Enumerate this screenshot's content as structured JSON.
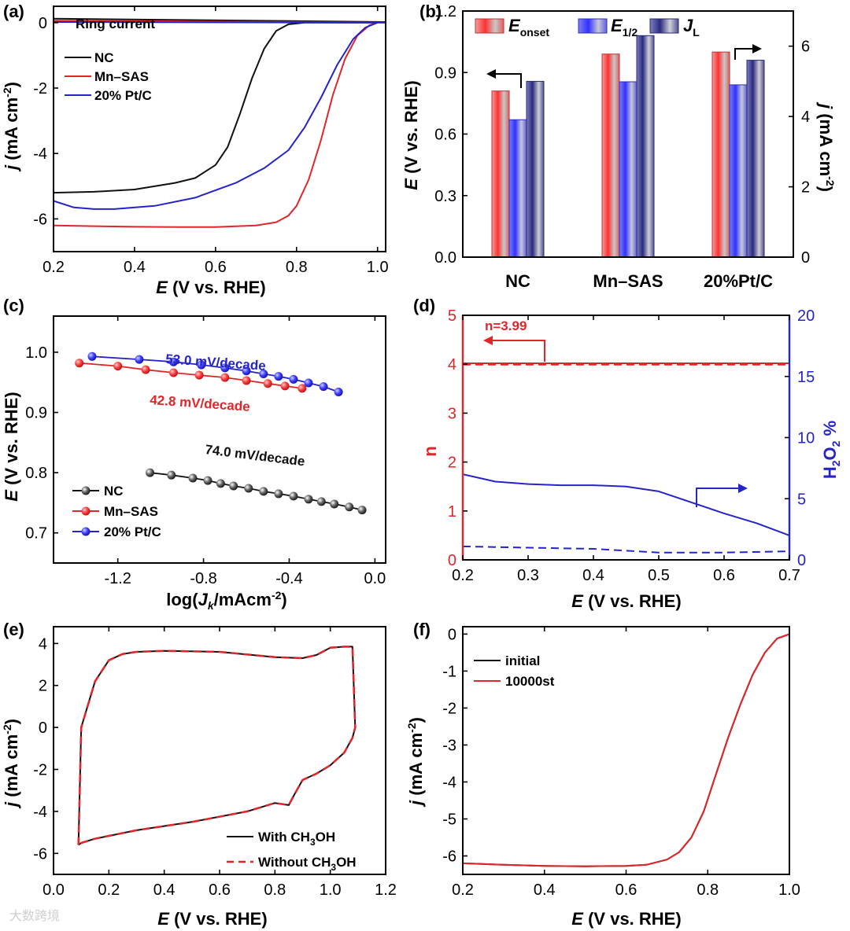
{
  "colors": {
    "black": "#111111",
    "red": "#e0262a",
    "blue": "#2424c8"
  },
  "watermark": "大数跨境",
  "chart_data": [
    {
      "id": "a",
      "panel_label": "(a)",
      "type": "line",
      "xlabel_italic": "E",
      "xlabel_rest": " (V vs. RHE)",
      "ylabel_italic": "j",
      "ylabel_rest": " (mA cm",
      "ylabel_sup": "-2",
      "ylabel_end": ")",
      "xlim": [
        0.2,
        1.02
      ],
      "ylim": [
        -7,
        0.5
      ],
      "xticks": [
        0.2,
        0.4,
        0.6,
        0.8,
        1.0
      ],
      "xticklabels": [
        "0.2",
        "0.4",
        "0.6",
        "0.8",
        "1.0"
      ],
      "yticks": [
        0,
        -2,
        -4,
        -6
      ],
      "yticklabels": [
        "0",
        "-2",
        "-4",
        "-6"
      ],
      "annotation": "Ring current",
      "legend": [
        "NC",
        "Mn–SAS",
        "20% Pt/C"
      ],
      "series": [
        {
          "name": "NC",
          "color": "black",
          "x": [
            0.2,
            0.3,
            0.4,
            0.5,
            0.55,
            0.6,
            0.63,
            0.66,
            0.69,
            0.72,
            0.75,
            0.78,
            0.82,
            0.9,
            1.0
          ],
          "y": [
            -5.2,
            -5.17,
            -5.1,
            -4.9,
            -4.75,
            -4.35,
            -3.8,
            -2.8,
            -1.7,
            -0.8,
            -0.25,
            -0.05,
            0,
            0,
            0
          ]
        },
        {
          "name": "Mn–SAS",
          "color": "red",
          "x": [
            0.2,
            0.3,
            0.4,
            0.5,
            0.6,
            0.7,
            0.75,
            0.78,
            0.8,
            0.83,
            0.86,
            0.89,
            0.92,
            0.95,
            0.98,
            1.0
          ],
          "y": [
            -6.2,
            -6.22,
            -6.24,
            -6.25,
            -6.25,
            -6.2,
            -6.1,
            -5.9,
            -5.6,
            -4.8,
            -3.6,
            -2.2,
            -1.1,
            -0.4,
            -0.08,
            0
          ]
        },
        {
          "name": "20% Pt/C",
          "color": "blue",
          "x": [
            0.2,
            0.25,
            0.3,
            0.35,
            0.45,
            0.55,
            0.65,
            0.72,
            0.78,
            0.82,
            0.86,
            0.9,
            0.94,
            0.97,
            1.0
          ],
          "y": [
            -5.45,
            -5.65,
            -5.7,
            -5.7,
            -5.6,
            -5.35,
            -4.9,
            -4.45,
            -3.9,
            -3.2,
            -2.3,
            -1.3,
            -0.5,
            -0.15,
            0
          ]
        },
        {
          "name": "",
          "color": "black",
          "x": [
            0.2,
            1.02
          ],
          "y": [
            0.12,
            0.02
          ]
        },
        {
          "name": "",
          "color": "red",
          "x": [
            0.2,
            1.02
          ],
          "y": [
            0.06,
            0.0
          ]
        },
        {
          "name": "",
          "color": "blue",
          "x": [
            0.2,
            1.02
          ],
          "y": [
            0.02,
            0.0
          ]
        }
      ]
    },
    {
      "id": "b",
      "panel_label": "(b)",
      "type": "bar",
      "ylabel_italic": "E",
      "ylabel_rest": " (V vs. RHE)",
      "y2label_italic": "j",
      "y2label_rest": " (mA cm",
      "y2label_sup": "-2",
      "y2label_end": ")",
      "categories": [
        "NC",
        "Mn–SAS",
        "20%Pt/C"
      ],
      "ylim": [
        0,
        1.2
      ],
      "yticks": [
        0.0,
        0.3,
        0.6,
        0.9,
        1.2
      ],
      "yticklabels": [
        "0.0",
        "0.3",
        "0.6",
        "0.9",
        "1.2"
      ],
      "y2lim": [
        0,
        7
      ],
      "y2ticks": [
        0,
        2,
        4,
        6
      ],
      "y2ticklabels": [
        "0",
        "2",
        "4",
        "6"
      ],
      "legend": [
        {
          "main": "E",
          "sub": "onset",
          "italic": true
        },
        {
          "main": "E",
          "sub": "1/2",
          "italic": true
        },
        {
          "main": "J",
          "sub": "L",
          "italic": true
        }
      ],
      "series": [
        {
          "name": "Eonset",
          "axis": "left",
          "values": [
            0.81,
            0.99,
            1.0
          ]
        },
        {
          "name": "E1/2",
          "axis": "left",
          "values": [
            0.67,
            0.855,
            0.84
          ]
        },
        {
          "name": "JL",
          "axis": "right",
          "values": [
            5.0,
            6.3,
            5.6
          ]
        }
      ]
    },
    {
      "id": "c",
      "panel_label": "(c)",
      "type": "line",
      "xlabel_pre": "log(",
      "xlabel_italic": "J",
      "xlabel_sub": "k",
      "xlabel_rest": "/mAcm",
      "xlabel_sup": "-2",
      "xlabel_end": ")",
      "ylabel_italic": "E",
      "ylabel_rest": " (V vs. RHE)",
      "xlim": [
        -1.5,
        0.05
      ],
      "ylim": [
        0.65,
        1.06
      ],
      "xticks": [
        -1.2,
        -0.8,
        -0.4,
        0.0
      ],
      "xticklabels": [
        "-1.2",
        "-0.8",
        "-0.4",
        "0.0"
      ],
      "yticks": [
        0.7,
        0.8,
        0.9,
        1.0
      ],
      "yticklabels": [
        "0.7",
        "0.8",
        "0.9",
        "1.0"
      ],
      "legend": [
        "NC",
        "Mn–SAS",
        "20% Pt/C"
      ],
      "annotations": [
        "53.0 mV/decade",
        "42.8 mV/decade",
        "74.0 mV/decade"
      ],
      "series": [
        {
          "name": "NC",
          "color": "black",
          "x": [
            -1.05,
            -0.95,
            -0.85,
            -0.78,
            -0.72,
            -0.66,
            -0.59,
            -0.52,
            -0.45,
            -0.38,
            -0.31,
            -0.25,
            -0.19,
            -0.12,
            -0.06
          ],
          "y": [
            0.8,
            0.796,
            0.791,
            0.787,
            0.782,
            0.778,
            0.774,
            0.769,
            0.765,
            0.761,
            0.756,
            0.752,
            0.748,
            0.743,
            0.738
          ]
        },
        {
          "name": "Mn–SAS",
          "color": "red",
          "x": [
            -1.38,
            -1.2,
            -1.07,
            -0.94,
            -0.82,
            -0.7,
            -0.6,
            -0.5,
            -0.42,
            -0.34
          ],
          "y": [
            0.982,
            0.977,
            0.971,
            0.966,
            0.962,
            0.958,
            0.953,
            0.948,
            0.944,
            0.94
          ]
        },
        {
          "name": "20% Pt/C",
          "color": "blue",
          "x": [
            -1.32,
            -1.1,
            -0.94,
            -0.81,
            -0.7,
            -0.6,
            -0.52,
            -0.45,
            -0.38,
            -0.31,
            -0.24,
            -0.17
          ],
          "y": [
            0.993,
            0.988,
            0.984,
            0.979,
            0.974,
            0.969,
            0.964,
            0.96,
            0.955,
            0.949,
            0.943,
            0.934
          ]
        }
      ]
    },
    {
      "id": "d",
      "panel_label": "(d)",
      "type": "line",
      "xlabel_italic": "E",
      "xlabel_rest": " (V vs. RHE)",
      "ylabel": "n",
      "y2label_pre": "H",
      "y2label_sub1": "2",
      "y2label_mid": "O",
      "y2label_sub2": "2",
      "y2label_end": " %",
      "xlim": [
        0.2,
        0.7
      ],
      "ylim": [
        0,
        5
      ],
      "y2lim": [
        0,
        20
      ],
      "xticks": [
        0.2,
        0.3,
        0.4,
        0.5,
        0.6,
        0.7
      ],
      "xticklabels": [
        "0.2",
        "0.3",
        "0.4",
        "0.5",
        "0.6",
        "0.7"
      ],
      "yticks": [
        0,
        1,
        2,
        3,
        4,
        5
      ],
      "yticklabels": [
        "0",
        "1",
        "2",
        "3",
        "4",
        "5"
      ],
      "y2ticks": [
        0,
        5,
        10,
        15,
        20
      ],
      "y2ticklabels": [
        "0",
        "5",
        "10",
        "15",
        "20"
      ],
      "annotation": "n=3.99",
      "series": [
        {
          "name": "n",
          "color": "red",
          "axis": "left",
          "x": [
            0.2,
            0.7
          ],
          "y": [
            4.02,
            4.02
          ]
        },
        {
          "name": "n",
          "color": "red",
          "axis": "left",
          "dashed": true,
          "x": [
            0.2,
            0.7
          ],
          "y": [
            3.99,
            3.99
          ]
        },
        {
          "name": "H2O2 %",
          "color": "blue",
          "axis": "right",
          "x": [
            0.2,
            0.25,
            0.3,
            0.35,
            0.4,
            0.45,
            0.5,
            0.55,
            0.6,
            0.65,
            0.7
          ],
          "y": [
            7.0,
            6.4,
            6.2,
            6.1,
            6.1,
            6.0,
            5.6,
            4.7,
            3.8,
            3.0,
            2.0
          ]
        },
        {
          "name": "H2O2 %",
          "color": "blue",
          "axis": "right",
          "dashed": true,
          "x": [
            0.2,
            0.3,
            0.4,
            0.5,
            0.6,
            0.7
          ],
          "y": [
            1.1,
            1.0,
            0.9,
            0.6,
            0.6,
            0.7
          ]
        }
      ]
    },
    {
      "id": "e",
      "panel_label": "(e)",
      "type": "line",
      "xlabel_italic": "E",
      "xlabel_rest": " (V vs. RHE)",
      "ylabel_italic": "j",
      "ylabel_rest": " (mA cm",
      "ylabel_sup": "-2",
      "ylabel_end": ")",
      "xlim": [
        0.0,
        1.2
      ],
      "ylim": [
        -7,
        4.8
      ],
      "xticks": [
        0.0,
        0.2,
        0.4,
        0.6,
        0.8,
        1.0,
        1.2
      ],
      "xticklabels": [
        "0.0",
        "0.2",
        "0.4",
        "0.6",
        "0.8",
        "1.0",
        "1.2"
      ],
      "yticks": [
        4,
        2,
        0,
        -2,
        -4,
        -6
      ],
      "yticklabels": [
        "4",
        "2",
        "0",
        "-2",
        "-4",
        "-6"
      ],
      "legend": [
        {
          "pre": "With CH",
          "sub": "3",
          "post": "OH"
        },
        {
          "pre": "Without CH",
          "sub": "3",
          "post": "OH"
        }
      ],
      "series": [
        {
          "name": "With CH3OH",
          "color": "black",
          "x": [
            0.09,
            0.1,
            0.15,
            0.2,
            0.25,
            0.3,
            0.4,
            0.6,
            0.8,
            0.9,
            0.95,
            1.0,
            1.05,
            1.08,
            1.09,
            1.08,
            1.05,
            1.0,
            0.95,
            0.9,
            0.87,
            0.85,
            0.8,
            0.7,
            0.5,
            0.3,
            0.15,
            0.1,
            0.09
          ],
          "y": [
            -5.6,
            0.0,
            2.2,
            3.2,
            3.5,
            3.6,
            3.65,
            3.6,
            3.35,
            3.3,
            3.45,
            3.8,
            3.85,
            3.85,
            0.0,
            -0.5,
            -1.2,
            -1.8,
            -2.2,
            -2.5,
            -3.2,
            -3.7,
            -3.6,
            -4.0,
            -4.5,
            -4.9,
            -5.3,
            -5.5,
            -5.6
          ]
        },
        {
          "name": "Without CH3OH",
          "color": "red",
          "dashed": true,
          "x": [
            0.09,
            0.1,
            0.15,
            0.2,
            0.25,
            0.3,
            0.4,
            0.6,
            0.8,
            0.9,
            0.95,
            1.0,
            1.05,
            1.08,
            1.09,
            1.08,
            1.05,
            1.0,
            0.95,
            0.9,
            0.87,
            0.85,
            0.8,
            0.7,
            0.5,
            0.3,
            0.15,
            0.1,
            0.09
          ],
          "y": [
            -5.6,
            0.0,
            2.2,
            3.2,
            3.5,
            3.6,
            3.65,
            3.6,
            3.35,
            3.3,
            3.45,
            3.8,
            3.85,
            3.85,
            0.0,
            -0.5,
            -1.2,
            -1.8,
            -2.2,
            -2.5,
            -3.2,
            -3.7,
            -3.6,
            -4.0,
            -4.5,
            -4.9,
            -5.3,
            -5.5,
            -5.6
          ]
        }
      ]
    },
    {
      "id": "f",
      "panel_label": "(f)",
      "type": "line",
      "xlabel_italic": "E",
      "xlabel_rest": " (V vs. RHE)",
      "ylabel_italic": "j",
      "ylabel_rest": " (mA cm",
      "ylabel_sup": "-2",
      "ylabel_end": ")",
      "xlim": [
        0.2,
        1.0
      ],
      "ylim": [
        -6.5,
        0.2
      ],
      "xticks": [
        0.2,
        0.4,
        0.6,
        0.8,
        1.0
      ],
      "xticklabels": [
        "0.2",
        "0.4",
        "0.6",
        "0.8",
        "1.0"
      ],
      "yticks": [
        0,
        -1,
        -2,
        -3,
        -4,
        -5,
        -6
      ],
      "yticklabels": [
        "0",
        "-1",
        "-2",
        "-3",
        "-4",
        "-5",
        "-6"
      ],
      "legend": [
        "initial",
        "10000st"
      ],
      "series": [
        {
          "name": "initial",
          "color": "black",
          "x": [
            0.2,
            0.3,
            0.4,
            0.5,
            0.6,
            0.65,
            0.7,
            0.73,
            0.76,
            0.79,
            0.82,
            0.85,
            0.88,
            0.91,
            0.94,
            0.97,
            1.0
          ],
          "y": [
            -6.2,
            -6.24,
            -6.27,
            -6.28,
            -6.27,
            -6.24,
            -6.1,
            -5.9,
            -5.5,
            -4.8,
            -3.8,
            -2.8,
            -1.9,
            -1.1,
            -0.5,
            -0.12,
            0.0
          ]
        },
        {
          "name": "10000st",
          "color": "red",
          "x": [
            0.2,
            0.3,
            0.4,
            0.5,
            0.6,
            0.65,
            0.7,
            0.73,
            0.76,
            0.79,
            0.82,
            0.85,
            0.88,
            0.91,
            0.94,
            0.97,
            1.0
          ],
          "y": [
            -6.2,
            -6.24,
            -6.27,
            -6.28,
            -6.27,
            -6.24,
            -6.1,
            -5.9,
            -5.5,
            -4.8,
            -3.8,
            -2.8,
            -1.9,
            -1.1,
            -0.5,
            -0.12,
            0.0
          ]
        }
      ]
    }
  ]
}
